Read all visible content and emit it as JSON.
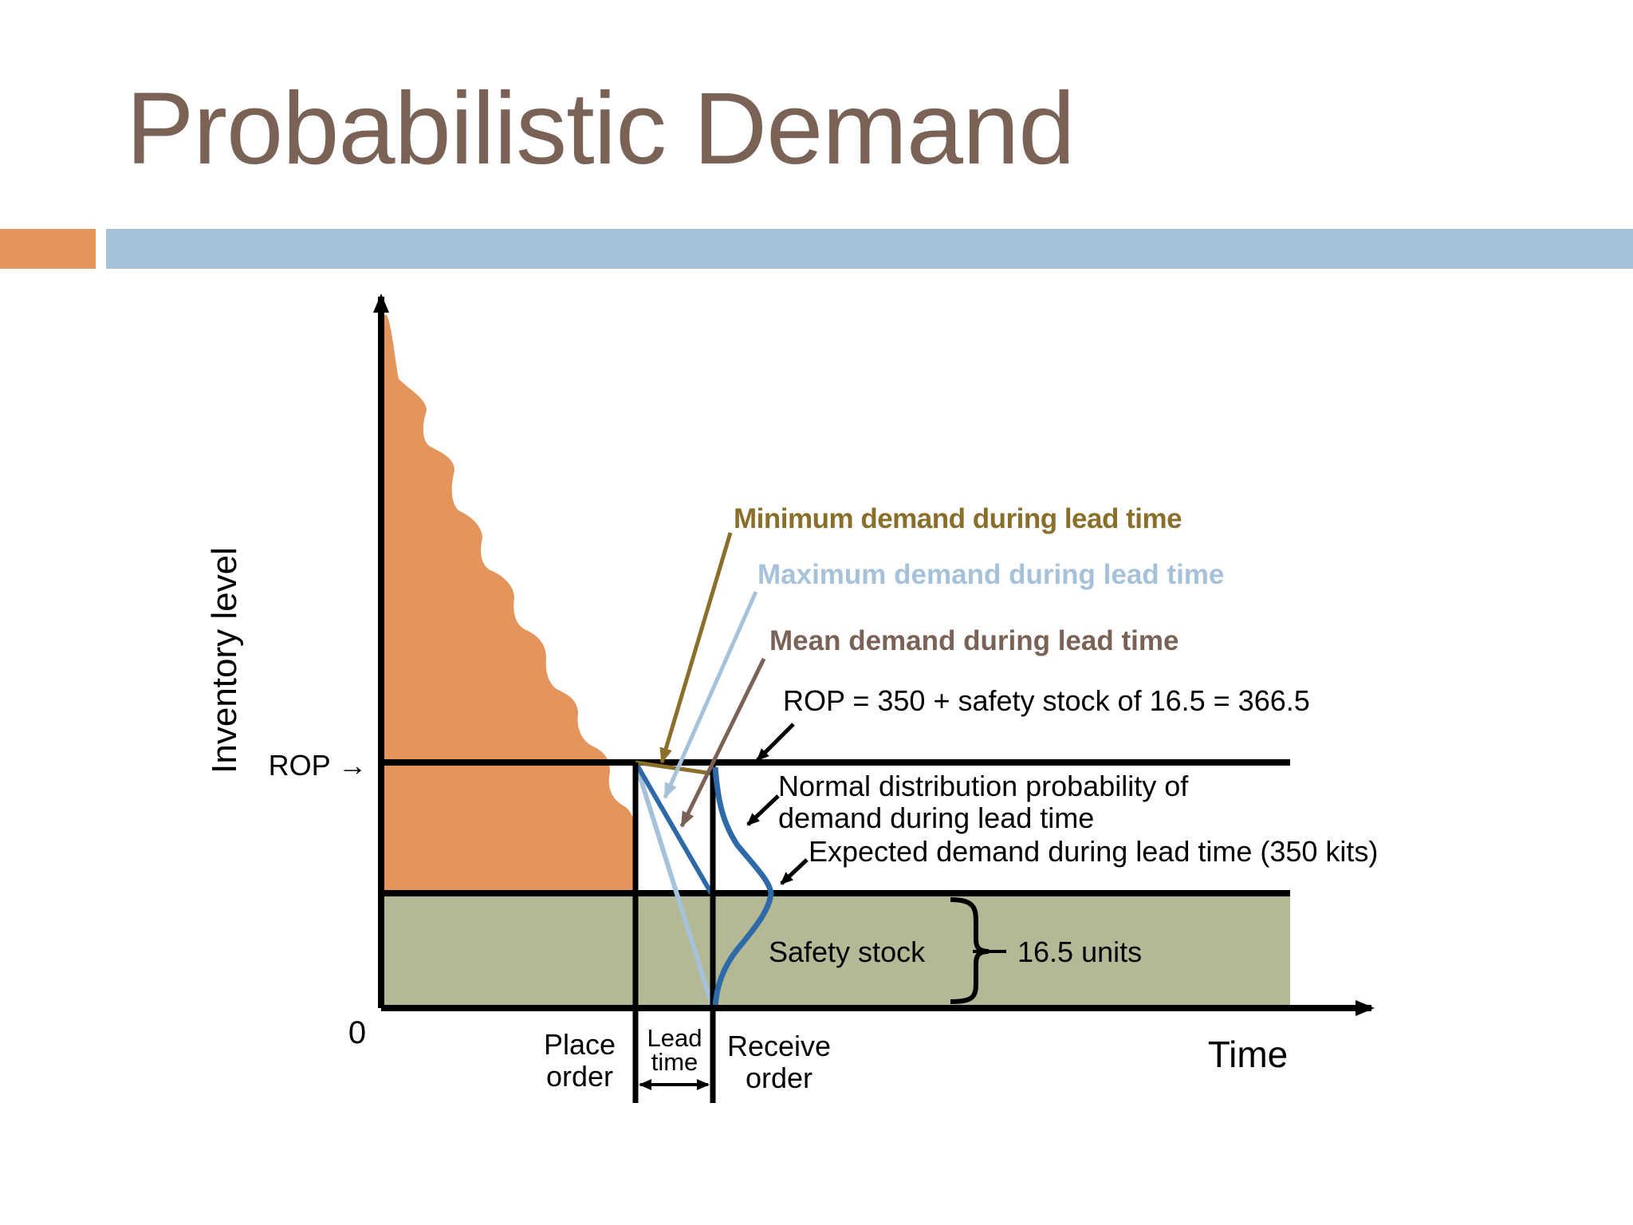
{
  "slide": {
    "title": "Probabilistic Demand"
  },
  "diagram": {
    "y_axis_label": "Inventory level",
    "x_axis_label": "Time",
    "origin_label": "0",
    "rop_marker": "ROP →",
    "place_order": [
      "Place",
      "order"
    ],
    "lead_time": [
      "Lead",
      "time"
    ],
    "receive_order": [
      "Receive",
      "order"
    ],
    "legend": {
      "minimum": "Minimum demand during lead time",
      "maximum": "Maximum demand during lead time",
      "mean": "Mean demand during lead time"
    },
    "annotations": {
      "rop_formula": "ROP = 350 + safety stock of 16.5 = 366.5",
      "normal_dist_line1": "Normal distribution probability of",
      "normal_dist_line2": "demand during lead time",
      "expected_demand": "Expected demand during lead time (350 kits)"
    },
    "safety_stock_label": "Safety stock",
    "safety_stock_units": "16.5 units",
    "colors": {
      "inventory_fill": "#e3955c",
      "safety_fill": "#b4b895",
      "minimum": "#8a6f2a",
      "maximum": "#a6c2da",
      "mean": "#7a6356",
      "normal_curve": "#2f6aa8",
      "title": "#7a6356"
    }
  }
}
